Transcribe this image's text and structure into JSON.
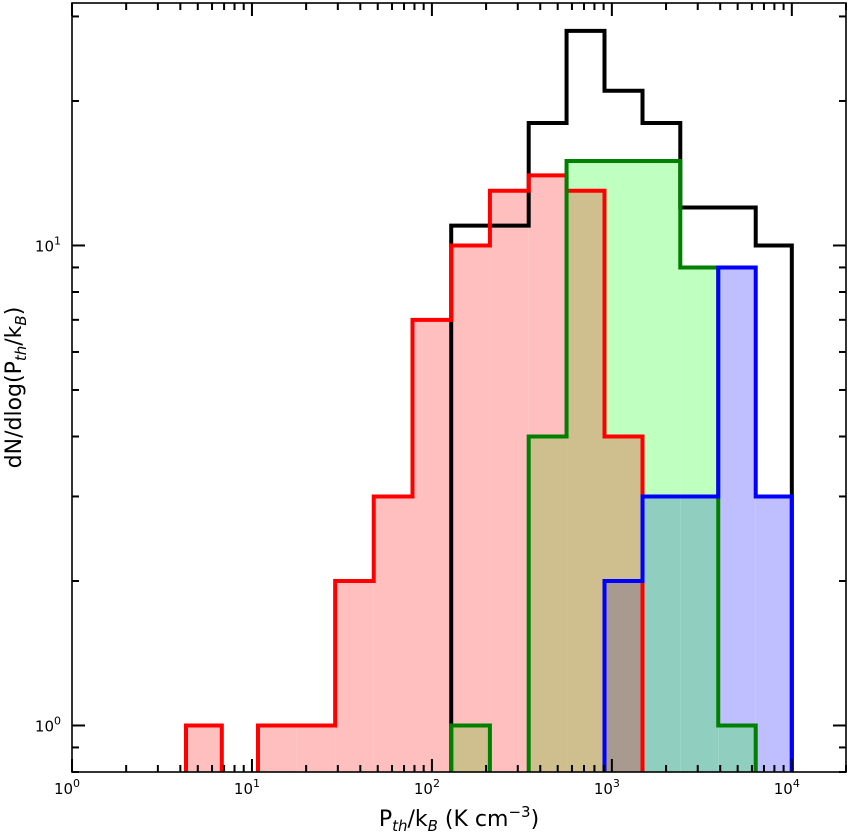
{
  "chart_data": {
    "type": "histogram",
    "xscale": "log",
    "yscale": "log",
    "xlim": [
      1,
      20000
    ],
    "ylim": [
      0.8,
      32
    ],
    "xlabel": {
      "base": "P",
      "sub": "th",
      "mid": "/k",
      "sub2": "B",
      "unit": " (K cm",
      "sup": "−3",
      "close": ")"
    },
    "ylabel": {
      "pre": "dN/dlog(P",
      "sub": "th",
      "mid": "/k",
      "sub2": "B",
      "close": ")"
    },
    "x_major_ticks": [
      {
        "value": 1,
        "base": "10",
        "exp": "0"
      },
      {
        "value": 10,
        "base": "10",
        "exp": "1"
      },
      {
        "value": 100,
        "base": "10",
        "exp": "2"
      },
      {
        "value": 1000,
        "base": "10",
        "exp": "3"
      },
      {
        "value": 10000,
        "base": "10",
        "exp": "4"
      }
    ],
    "y_major_ticks": [
      {
        "value": 1,
        "base": "10",
        "exp": "0"
      },
      {
        "value": 10,
        "base": "10",
        "exp": "1"
      }
    ],
    "bin_edges": [
      4.3,
      6.8,
      10.8,
      17.6,
      29.0,
      47.5,
      78.0,
      128,
      210,
      345,
      560,
      910,
      1480,
      2400,
      3900,
      6300,
      10000
    ],
    "series": [
      {
        "color": "#000000",
        "fill": "none",
        "counts": [
          0,
          0,
          0,
          0,
          0,
          0,
          0,
          11,
          11,
          18,
          28,
          21,
          18,
          12,
          12,
          10
        ]
      },
      {
        "color": "#ff0000",
        "fill": "#ffbfbf",
        "counts": [
          1,
          0,
          1,
          1,
          2,
          3,
          7,
          10,
          13,
          14,
          13,
          4,
          0,
          0,
          0,
          0
        ]
      },
      {
        "color": "#008000",
        "fill": "#bfffbf",
        "counts": [
          0,
          0,
          0,
          0,
          0,
          0,
          0,
          1,
          0,
          4,
          15,
          15,
          15,
          9,
          1,
          0
        ]
      },
      {
        "color": "#0000ff",
        "fill": "#bfbfff",
        "counts": [
          0,
          0,
          0,
          0,
          0,
          0,
          0,
          0,
          0,
          0,
          0,
          2,
          3,
          3,
          9,
          3
        ]
      }
    ],
    "overlap_fills": {
      "red_green": "#cfbf8f",
      "red_blue": "#a89a8e",
      "green_blue": "#90cfbf"
    }
  }
}
